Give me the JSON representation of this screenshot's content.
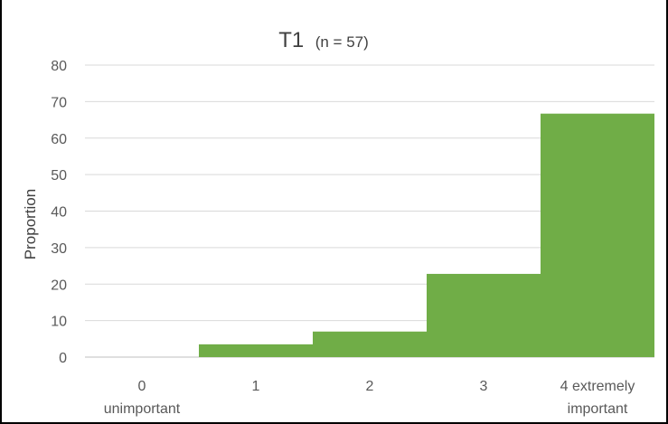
{
  "chart_data": {
    "type": "bar",
    "title": "T1",
    "subtitle": "(n = 57)",
    "ylabel": "Proportion",
    "xlabel": "",
    "ylim": [
      0,
      80
    ],
    "yticks": [
      "0",
      "10",
      "20",
      "30",
      "40",
      "50",
      "60",
      "70",
      "80"
    ],
    "categories": [
      [
        "0",
        "unimportant"
      ],
      [
        "1"
      ],
      [
        "2"
      ],
      [
        "3"
      ],
      [
        "4 extremely",
        "important"
      ]
    ],
    "values": [
      0,
      3.5,
      7,
      22.8,
      66.7
    ],
    "grid": true,
    "legend": "none",
    "colors": {
      "bar": "#70ad47",
      "grid": "#d9d9d9",
      "axis": "#bfbfbf"
    }
  }
}
